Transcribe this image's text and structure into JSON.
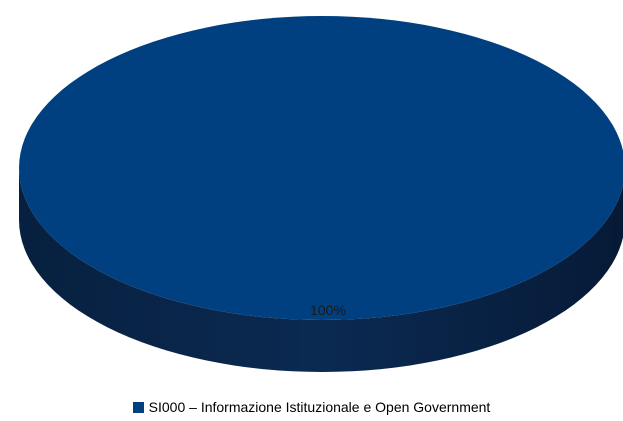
{
  "chart_data": {
    "type": "pie",
    "categories": [
      "SI000 – Informazione Istituzionale e Open Government"
    ],
    "values": [
      100
    ],
    "data_labels": [
      "100%"
    ],
    "colors": [
      "#004080"
    ],
    "side_color": "#0a2448",
    "legend_position": "bottom",
    "style": "3d"
  }
}
